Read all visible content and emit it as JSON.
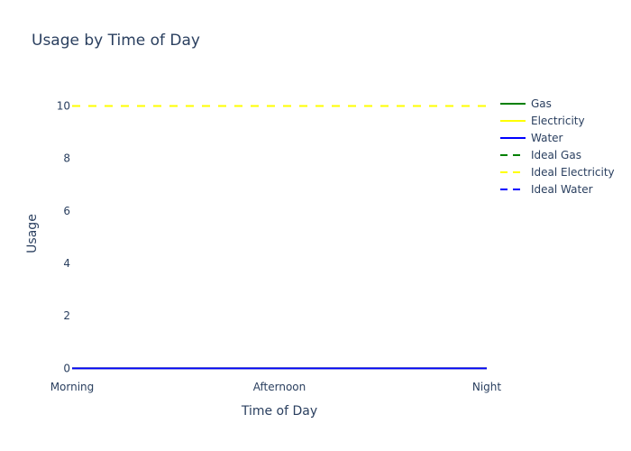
{
  "chart_data": {
    "type": "line",
    "title": "Usage by Time of Day",
    "xlabel": "Time of Day",
    "ylabel": "Usage",
    "categories": [
      "Morning",
      "Afternoon",
      "Night"
    ],
    "ylim": [
      -0.4,
      10.6
    ],
    "yticks": [
      0,
      2,
      4,
      6,
      8,
      10
    ],
    "grid": false,
    "legend_position": "right",
    "series": [
      {
        "name": "Gas",
        "values": [
          0,
          0,
          0
        ],
        "color": "#008000",
        "dash": "solid"
      },
      {
        "name": "Electricity",
        "values": [
          0,
          0,
          0
        ],
        "color": "#ffff00",
        "dash": "solid"
      },
      {
        "name": "Water",
        "values": [
          0,
          0,
          0
        ],
        "color": "#0000ff",
        "dash": "solid"
      },
      {
        "name": "Ideal Gas",
        "values": [
          null,
          null,
          null
        ],
        "color": "#008000",
        "dash": "dash"
      },
      {
        "name": "Ideal Electricity",
        "values": [
          10,
          10,
          10
        ],
        "color": "#ffff00",
        "dash": "dash"
      },
      {
        "name": "Ideal Water",
        "values": [
          null,
          null,
          null
        ],
        "color": "#0000ff",
        "dash": "dash"
      }
    ]
  }
}
